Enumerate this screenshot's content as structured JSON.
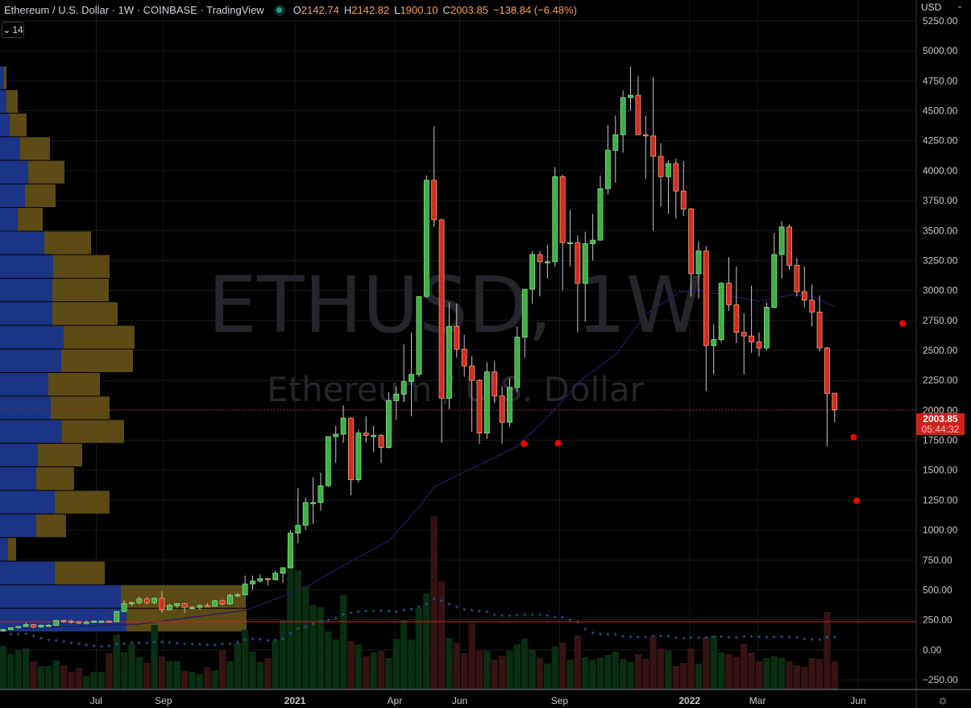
{
  "header": {
    "title": "Ethereum / U.S. Dollar · 1W · COINBASE · TradingView",
    "status_color": "#1ea88a",
    "ohlc": {
      "o_label": "O",
      "o": "2142.74",
      "h_label": "H",
      "h": "2142.82",
      "l_label": "L",
      "l": "1900.10",
      "c_label": "C",
      "c": "2003.85",
      "change": "−138.84 (−6.48%)"
    },
    "indicator_toggle": "14"
  },
  "watermark": {
    "symbol": "ETHUSD, 1W",
    "name": "Ethereum / U.S. Dollar"
  },
  "price_axis": {
    "currency": "USD",
    "ticks": [
      "5250.00",
      "5000.00",
      "4750.00",
      "4500.00",
      "4250.00",
      "4000.00",
      "3750.00",
      "3500.00",
      "3250.00",
      "3000.00",
      "2750.00",
      "2500.00",
      "2250.00",
      "2000.00",
      "1750.00",
      "1500.00",
      "1250.00",
      "1000.00",
      "750.00",
      "500.00",
      "250.00",
      "0.00",
      "−250.00"
    ],
    "last_price": "2003.85",
    "countdown": "05:44:32"
  },
  "time_axis": {
    "ticks": [
      "Jul",
      "Sep",
      "2021",
      "Apr",
      "Jun",
      "Sep",
      "2022",
      "Mar",
      "Jun"
    ]
  },
  "settings_icon": "gear-icon",
  "chart_data": {
    "type": "candlestick",
    "interval": "1W",
    "ylim": [
      -250,
      5250
    ],
    "grid": true,
    "colors": {
      "up": "#3cb043",
      "down": "#d42a20",
      "volume_up": "#0a2e10",
      "volume_down": "#361313",
      "ma": "#1c1c5e",
      "profile_up": "#1b3485",
      "profile_down": "#5c4b14",
      "level_line": "#c0282a",
      "dots": "#ff0000"
    },
    "candles_ohlc": [
      [
        158,
        175,
        150,
        170
      ],
      [
        170,
        187,
        165,
        185
      ],
      [
        185,
        198,
        178,
        195
      ],
      [
        195,
        227,
        190,
        210
      ],
      [
        210,
        215,
        180,
        190
      ],
      [
        190,
        210,
        185,
        205
      ],
      [
        205,
        215,
        195,
        205
      ],
      [
        205,
        250,
        200,
        245
      ],
      [
        245,
        252,
        225,
        240
      ],
      [
        240,
        250,
        220,
        235
      ],
      [
        235,
        240,
        215,
        230
      ],
      [
        230,
        245,
        220,
        230
      ],
      [
        230,
        245,
        225,
        240
      ],
      [
        240,
        245,
        230,
        240
      ],
      [
        240,
        243,
        230,
        235
      ],
      [
        235,
        325,
        233,
        320
      ],
      [
        320,
        415,
        315,
        385
      ],
      [
        385,
        400,
        365,
        395
      ],
      [
        395,
        445,
        380,
        425
      ],
      [
        425,
        440,
        380,
        395
      ],
      [
        395,
        435,
        380,
        430
      ],
      [
        430,
        490,
        310,
        335
      ],
      [
        335,
        385,
        330,
        370
      ],
      [
        370,
        390,
        350,
        385
      ],
      [
        385,
        390,
        310,
        355
      ],
      [
        355,
        365,
        340,
        355
      ],
      [
        355,
        380,
        335,
        370
      ],
      [
        370,
        390,
        360,
        365
      ],
      [
        365,
        415,
        360,
        410
      ],
      [
        410,
        420,
        370,
        385
      ],
      [
        385,
        470,
        375,
        455
      ],
      [
        455,
        475,
        440,
        460
      ],
      [
        460,
        620,
        455,
        550
      ],
      [
        550,
        620,
        500,
        575
      ],
      [
        575,
        630,
        560,
        595
      ],
      [
        595,
        600,
        540,
        585
      ],
      [
        585,
        660,
        580,
        640
      ],
      [
        640,
        690,
        560,
        685
      ],
      [
        685,
        1000,
        680,
        975
      ],
      [
        975,
        1350,
        890,
        1040
      ],
      [
        1040,
        1270,
        1000,
        1230
      ],
      [
        1230,
        1440,
        1050,
        1230
      ],
      [
        1230,
        1480,
        1160,
        1370
      ],
      [
        1370,
        1780,
        1360,
        1780
      ],
      [
        1780,
        1870,
        1560,
        1800
      ],
      [
        1800,
        2040,
        1730,
        1935
      ],
      [
        1935,
        1940,
        1290,
        1420
      ],
      [
        1420,
        1840,
        1400,
        1810
      ],
      [
        1810,
        1950,
        1730,
        1790
      ],
      [
        1790,
        1870,
        1650,
        1790
      ],
      [
        1790,
        1800,
        1560,
        1690
      ],
      [
        1690,
        2150,
        1680,
        2080
      ],
      [
        2080,
        2200,
        1920,
        2135
      ],
      [
        2135,
        2550,
        2070,
        2240
      ],
      [
        2240,
        2650,
        1950,
        2300
      ],
      [
        2300,
        2950,
        2280,
        2950
      ],
      [
        2950,
        3960,
        2940,
        3920
      ],
      [
        3920,
        4370,
        3530,
        3590
      ],
      [
        3590,
        3600,
        1730,
        2100
      ],
      [
        2100,
        2900,
        2010,
        2700
      ],
      [
        2700,
        2890,
        2440,
        2510
      ],
      [
        2510,
        2630,
        2280,
        2370
      ],
      [
        2370,
        2450,
        1820,
        2250
      ],
      [
        2250,
        2260,
        1720,
        1810
      ],
      [
        1810,
        2400,
        1760,
        2320
      ],
      [
        2320,
        2410,
        2060,
        2120
      ],
      [
        2120,
        2200,
        1720,
        1900
      ],
      [
        1900,
        2270,
        1860,
        2190
      ],
      [
        2190,
        2700,
        2150,
        2610
      ],
      [
        2610,
        3000,
        2440,
        3010
      ],
      [
        3010,
        3330,
        2890,
        3300
      ],
      [
        3300,
        3330,
        2950,
        3240
      ],
      [
        3240,
        3380,
        3100,
        3240
      ],
      [
        3240,
        4030,
        3200,
        3950
      ],
      [
        3950,
        3970,
        3000,
        3400
      ],
      [
        3400,
        3670,
        3200,
        3400
      ],
      [
        3400,
        3460,
        2650,
        3060
      ],
      [
        3060,
        3490,
        2740,
        3390
      ],
      [
        3390,
        3640,
        3250,
        3420
      ],
      [
        3420,
        3960,
        3420,
        3850
      ],
      [
        3850,
        4380,
        3800,
        4170
      ],
      [
        4170,
        4460,
        3900,
        4300
      ],
      [
        4300,
        4670,
        4150,
        4610
      ],
      [
        4610,
        4870,
        4500,
        4630
      ],
      [
        4630,
        4790,
        4300,
        4300
      ],
      [
        4300,
        4460,
        3930,
        4290
      ],
      [
        4290,
        4780,
        3500,
        4120
      ],
      [
        4120,
        4230,
        3700,
        3950
      ],
      [
        3950,
        4090,
        3640,
        4060
      ],
      [
        4060,
        4100,
        3600,
        3830
      ],
      [
        3830,
        4080,
        3620,
        3680
      ],
      [
        3680,
        3690,
        2950,
        3140
      ],
      [
        3140,
        3410,
        2930,
        3330
      ],
      [
        3330,
        3370,
        2160,
        2540
      ],
      [
        2540,
        2720,
        2300,
        2590
      ],
      [
        2590,
        3070,
        2570,
        3060
      ],
      [
        3060,
        3280,
        2830,
        2880
      ],
      [
        2880,
        3200,
        2560,
        2650
      ],
      [
        2650,
        2810,
        2300,
        2620
      ],
      [
        2620,
        3040,
        2480,
        2570
      ],
      [
        2570,
        2650,
        2450,
        2520
      ],
      [
        2520,
        2900,
        2500,
        2860
      ],
      [
        2860,
        3480,
        2850,
        3300
      ],
      [
        3300,
        3580,
        3100,
        3530
      ],
      [
        3530,
        3550,
        3170,
        3210
      ],
      [
        3210,
        3270,
        2950,
        2990
      ],
      [
        2990,
        3200,
        2860,
        2920
      ],
      [
        2920,
        3050,
        2700,
        2820
      ],
      [
        2820,
        2960,
        2490,
        2520
      ],
      [
        2520,
        2530,
        1700,
        2140
      ],
      [
        2142.74,
        2142.82,
        1900.1,
        2003.85
      ]
    ],
    "volume_relative": [
      54,
      44,
      49,
      51,
      35,
      29,
      29,
      36,
      30,
      22,
      27,
      17,
      22,
      22,
      45,
      68,
      46,
      56,
      40,
      33,
      80,
      41,
      35,
      35,
      23,
      22,
      19,
      28,
      24,
      49,
      35,
      58,
      74,
      47,
      34,
      39,
      61,
      86,
      177,
      148,
      128,
      105,
      102,
      72,
      62,
      117,
      60,
      56,
      41,
      46,
      48,
      39,
      63,
      86,
      62,
      101,
      119,
      215,
      134,
      64,
      58,
      45,
      83,
      48,
      48,
      37,
      42,
      48,
      56,
      63,
      49,
      39,
      32,
      53,
      58,
      37,
      67,
      40,
      37,
      39,
      43,
      47,
      38,
      34,
      44,
      38,
      66,
      51,
      48,
      29,
      33,
      51,
      32,
      65,
      67,
      46,
      44,
      40,
      57,
      46,
      35,
      39,
      41,
      39,
      35,
      30,
      28,
      39,
      38,
      96,
      35
    ],
    "moving_average": [
      [
        0,
        175
      ],
      [
        18,
        215
      ],
      [
        32,
        330
      ],
      [
        40,
        520
      ],
      [
        44,
        670
      ],
      [
        51,
        910
      ],
      [
        55,
        1190
      ],
      [
        57,
        1360
      ],
      [
        68,
        1700
      ],
      [
        71.5,
        1910
      ],
      [
        76.7,
        2265
      ],
      [
        81,
        2465
      ],
      [
        85,
        2800
      ],
      [
        89.5,
        2985
      ],
      [
        92,
        3005
      ],
      [
        94,
        2980
      ],
      [
        100,
        2910
      ],
      [
        104.4,
        2965
      ],
      [
        107,
        2950
      ],
      [
        110,
        2865
      ]
    ],
    "level_line": 235,
    "markers": [
      [
        68.9,
        1720
      ],
      [
        73.4,
        1725
      ],
      [
        112.5,
        1775
      ],
      [
        112.9,
        1245
      ],
      [
        119,
        2725
      ]
    ],
    "volume_profile": {
      "price_range": [
        147,
        4870
      ],
      "rows_top_to_bottom_up_down": [
        [
          5,
          3
        ],
        [
          8,
          14
        ],
        [
          12,
          21
        ],
        [
          25,
          37
        ],
        [
          35,
          45
        ],
        [
          31,
          38
        ],
        [
          22,
          31
        ],
        [
          55,
          58
        ],
        [
          66,
          70
        ],
        [
          65,
          70
        ],
        [
          65,
          81
        ],
        [
          79,
          88
        ],
        [
          76,
          89
        ],
        [
          60,
          64
        ],
        [
          63,
          73
        ],
        [
          77,
          77
        ],
        [
          47,
          55
        ],
        [
          45,
          47
        ],
        [
          68,
          68
        ],
        [
          45,
          37
        ],
        [
          10,
          10
        ],
        [
          68,
          62
        ],
        [
          150,
          155
        ],
        [
          157,
          149
        ]
      ]
    }
  }
}
